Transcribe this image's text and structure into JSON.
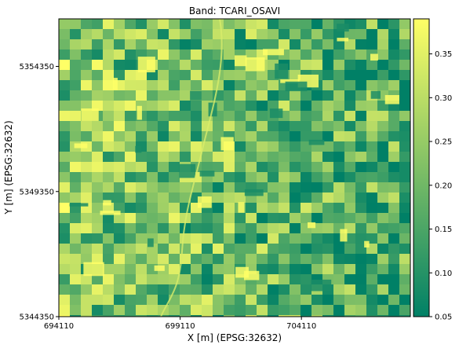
{
  "chart_data": {
    "type": "heatmap",
    "title": "Band: TCARI_OSAVI",
    "xlabel": "X [m] (EPSG:32632)",
    "ylabel": "Y [m] (EPSG:32632)",
    "x_ticks": [
      694110,
      699110,
      704110
    ],
    "y_ticks": [
      5344350,
      5349350,
      5354350
    ],
    "xlim": [
      694110,
      708600
    ],
    "ylim": [
      5344350,
      5356250
    ],
    "colorbar": {
      "ticks": [
        0.05,
        0.1,
        0.15,
        0.2,
        0.25,
        0.3,
        0.35
      ],
      "tick_labels": [
        "0.05",
        "0.10",
        "0.15",
        "0.20",
        "0.25",
        "0.30",
        "0.35"
      ],
      "range": [
        0.05,
        0.39
      ],
      "colormap": "summer",
      "low_color": "#008066",
      "high_color": "#ffff66"
    }
  }
}
